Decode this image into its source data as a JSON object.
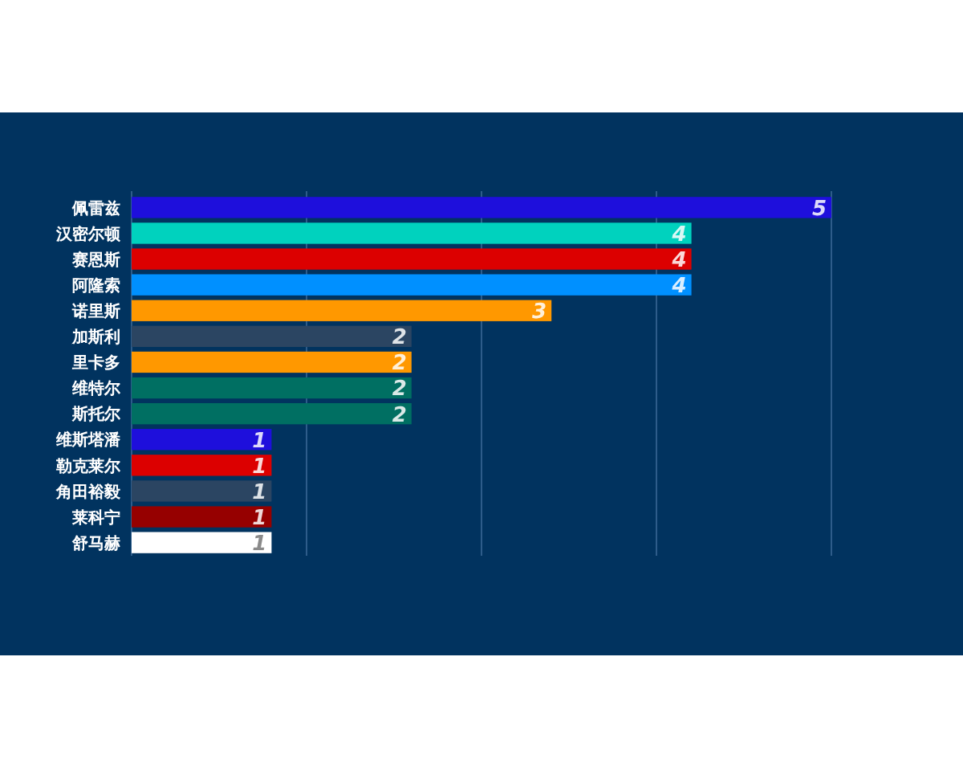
{
  "chart_data": {
    "type": "bar",
    "orientation": "horizontal",
    "categories": [
      "佩雷兹",
      "汉密尔顿",
      "赛恩斯",
      "阿隆索",
      "诺里斯",
      "加斯利",
      "里卡多",
      "维特尔",
      "斯托尔",
      "维斯塔潘",
      "勒克莱尔",
      "角田裕毅",
      "莱科宁",
      "舒马赫"
    ],
    "values": [
      5,
      4,
      4,
      4,
      3,
      2,
      2,
      2,
      2,
      1,
      1,
      1,
      1,
      1
    ],
    "colors": [
      "#1e0fdc",
      "#00d2be",
      "#dc0000",
      "#0090ff",
      "#ff9800",
      "#2b4562",
      "#ff9800",
      "#006f62",
      "#006f62",
      "#1e0fdc",
      "#dc0000",
      "#2b4562",
      "#960000",
      "#ffffff"
    ],
    "xlim": [
      0,
      5
    ],
    "xticks": [
      {
        "value": 0,
        "label": null
      },
      {
        "value": 1.25,
        "label": null
      },
      {
        "value": 2.5,
        "label": null
      },
      {
        "value": 3.75,
        "label": null
      },
      {
        "value": 5,
        "label": null
      }
    ],
    "grid": "x",
    "data_labels": true,
    "tick_labels": "y"
  }
}
